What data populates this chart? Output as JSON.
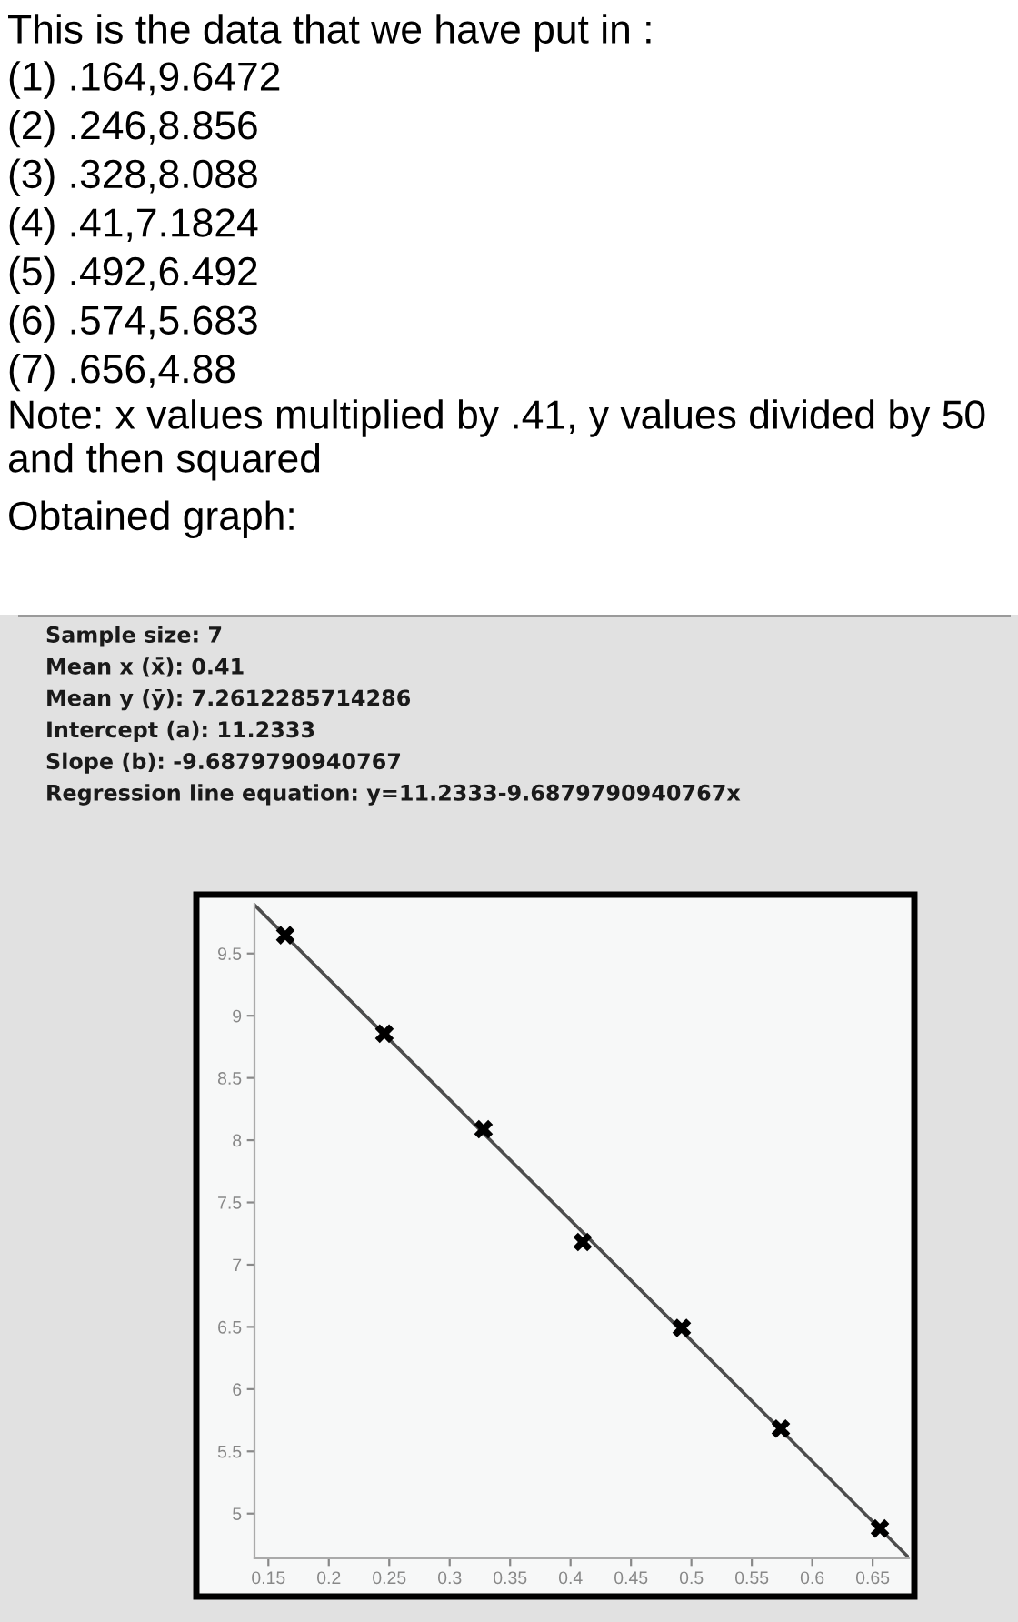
{
  "chart_data": {
    "type": "scatter",
    "title": "This is the data that we have put in :",
    "annotations": [
      "(1) .164,9.6472",
      "(2) .246,8.856",
      "(3) .328,8.088",
      "(4) .41,7.1824",
      "(5) .492,6.492",
      "(6) .574,5.683",
      "(7) .656,4.88",
      "Note: x values multiplied by .41, y values divided by 50 and then squared",
      "Obtained graph:",
      "Sample size: 7",
      "Mean x (x̄): 0.41",
      "Mean y (ȳ): 7.2612285714286",
      "Intercept (a): 11.2333",
      "Slope (b): -9.6879790940767",
      "Regression line equation: y=11.2333-9.6879790940767x"
    ],
    "series": [
      {
        "type": "scatter",
        "color": "#000000",
        "marker": "cross",
        "x": [
          0.164,
          0.246,
          0.328,
          0.41,
          0.492,
          0.574,
          0.656
        ],
        "values": [
          9.6472,
          8.856,
          8.088,
          7.1824,
          6.492,
          5.683,
          4.88
        ]
      },
      {
        "type": "line",
        "color": "#4d4d4d",
        "marker": "none",
        "line_style": "solid",
        "x": [
          0.1385,
          0.68
        ],
        "values": [
          9.89,
          4.646
        ]
      }
    ],
    "xlim": [
      0.1385,
      0.68
    ],
    "xticks": [
      0.15,
      0.2,
      0.25,
      0.3,
      0.35,
      0.4,
      0.45,
      0.5,
      0.55,
      0.6,
      0.65
    ],
    "ylim": [
      4.64,
      9.9
    ],
    "yticks": [
      5,
      5.5,
      6,
      6.5,
      7,
      7.5,
      8,
      8.5,
      9,
      9.5
    ],
    "grid": false,
    "legend": false
  }
}
